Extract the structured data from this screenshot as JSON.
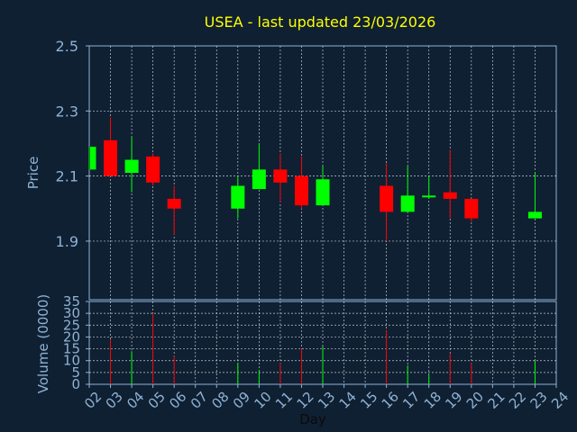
{
  "chart_data": {
    "type": "candlestick",
    "title": "USEA - last updated 23/03/2026",
    "xlabel": "Day",
    "ylabel_price": "Price",
    "ylabel_volume": "Volume (0000)",
    "price_ticks": [
      "2.5",
      "2.3",
      "2.1",
      "1.9"
    ],
    "price_ylim": [
      1.72,
      2.5
    ],
    "volume_ticks": [
      "35",
      "30",
      "25",
      "20",
      "15",
      "10",
      "5",
      "0"
    ],
    "volume_ylim": [
      0,
      35
    ],
    "x_ticks": [
      "02",
      "03",
      "04",
      "05",
      "06",
      "07",
      "08",
      "09",
      "10",
      "11",
      "12",
      "13",
      "14",
      "15",
      "16",
      "17",
      "18",
      "19",
      "20",
      "21",
      "22",
      "23",
      "24"
    ],
    "grid": true,
    "colors": {
      "background": "#0f2033",
      "plot_border": "#8fb2d4",
      "grid": "#ffffff",
      "title": "#ffff00",
      "up": "#00ff00",
      "down": "#ff0000",
      "tick": "#8fb2d4"
    },
    "candles": [
      {
        "day": "02",
        "open": 2.12,
        "high": 2.19,
        "low": 2.12,
        "close": 2.19,
        "volume": 0
      },
      {
        "day": "03",
        "open": 2.21,
        "high": 2.28,
        "low": 2.1,
        "close": 2.1,
        "volume": 19
      },
      {
        "day": "04",
        "open": 2.11,
        "high": 2.22,
        "low": 2.05,
        "close": 2.15,
        "volume": 14
      },
      {
        "day": "05",
        "open": 2.16,
        "high": 2.17,
        "low": 2.07,
        "close": 2.08,
        "volume": 30
      },
      {
        "day": "06",
        "open": 2.03,
        "high": 2.07,
        "low": 1.92,
        "close": 2.0,
        "volume": 12
      },
      {
        "day": "09",
        "open": 2.0,
        "high": 2.1,
        "low": 1.97,
        "close": 2.07,
        "volume": 9
      },
      {
        "day": "10",
        "open": 2.06,
        "high": 2.2,
        "low": 2.06,
        "close": 2.12,
        "volume": 6
      },
      {
        "day": "11",
        "open": 2.12,
        "high": 2.17,
        "low": 2.02,
        "close": 2.08,
        "volume": 9
      },
      {
        "day": "12",
        "open": 2.1,
        "high": 2.16,
        "low": 2.0,
        "close": 2.01,
        "volume": 15
      },
      {
        "day": "13",
        "open": 2.01,
        "high": 2.13,
        "low": 2.01,
        "close": 2.09,
        "volume": 16
      },
      {
        "day": "16",
        "open": 2.07,
        "high": 2.14,
        "low": 1.9,
        "close": 1.99,
        "volume": 23
      },
      {
        "day": "17",
        "open": 1.99,
        "high": 2.13,
        "low": 1.99,
        "close": 2.04,
        "volume": 8
      },
      {
        "day": "18",
        "open": 2.04,
        "high": 2.1,
        "low": 2.03,
        "close": 2.04,
        "volume": 4
      },
      {
        "day": "19",
        "open": 2.05,
        "high": 2.18,
        "low": 1.97,
        "close": 2.03,
        "volume": 13
      },
      {
        "day": "20",
        "open": 2.03,
        "high": 2.03,
        "low": 1.96,
        "close": 1.97,
        "volume": 9
      },
      {
        "day": "23",
        "open": 1.97,
        "high": 2.11,
        "low": 1.97,
        "close": 1.99,
        "volume": 10
      }
    ]
  }
}
